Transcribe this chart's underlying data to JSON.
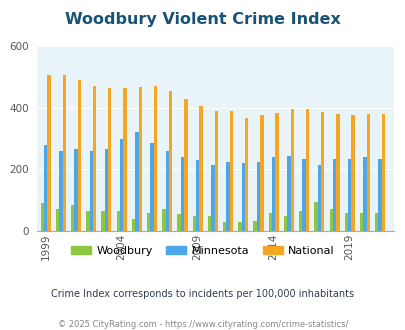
{
  "title": "Woodbury Violent Crime Index",
  "years": [
    1999,
    2000,
    2001,
    2002,
    2003,
    2004,
    2005,
    2006,
    2007,
    2008,
    2009,
    2010,
    2011,
    2012,
    2013,
    2014,
    2015,
    2016,
    2017,
    2018,
    2019,
    2020,
    2021
  ],
  "woodbury": [
    90,
    70,
    85,
    65,
    65,
    65,
    40,
    60,
    70,
    55,
    50,
    50,
    28,
    28,
    33,
    58,
    50,
    65,
    95,
    73,
    60,
    60,
    60
  ],
  "minnesota": [
    280,
    260,
    265,
    260,
    265,
    300,
    320,
    285,
    260,
    240,
    230,
    215,
    225,
    220,
    225,
    240,
    242,
    235,
    215,
    235,
    235,
    240,
    235
  ],
  "national": [
    505,
    505,
    490,
    470,
    465,
    465,
    468,
    470,
    455,
    430,
    405,
    390,
    388,
    368,
    375,
    383,
    395,
    397,
    385,
    380,
    375,
    380,
    380
  ],
  "woodbury_color": "#8dc63f",
  "minnesota_color": "#4da6e8",
  "national_color": "#f5a623",
  "bg_color": "#e8f4f8",
  "ylim": [
    0,
    600
  ],
  "yticks": [
    0,
    200,
    400,
    600
  ],
  "subtitle": "Crime Index corresponds to incidents per 100,000 inhabitants",
  "footer": "© 2025 CityRating.com - https://www.cityrating.com/crime-statistics/",
  "title_color": "#1a5276",
  "subtitle_color": "#2c3e50",
  "footer_color": "#888888",
  "xtick_labels": [
    "1999",
    "2004",
    "2009",
    "2014",
    "2019"
  ],
  "xtick_positions": [
    1999,
    2004,
    2009,
    2014,
    2019
  ],
  "bar_width": 0.22
}
